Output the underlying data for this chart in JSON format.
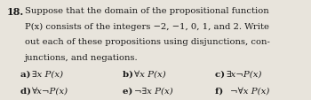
{
  "background_color": "#e8e4dc",
  "text_color": "#1a1a1a",
  "number": "18.",
  "body_lines": [
    "Suppose that the domain of the propositional function",
    "P(x) consists of the integers −2, −1, 0, 1, and 2. Write",
    "out each of these propositions using disjunctions, con-",
    "junctions, and negations."
  ],
  "items_row1": [
    {
      "label": "a) ",
      "expr": "∃x P(x)"
    },
    {
      "label": "b) ",
      "expr": "∀x P(x)"
    },
    {
      "label": "c) ",
      "expr": "∃x¬P(x)"
    }
  ],
  "items_row2": [
    {
      "label": "d) ",
      "expr": "∀x¬P(x)"
    },
    {
      "label": "e) ",
      "expr": "¬∃x P(x)"
    },
    {
      "label": "f)  ",
      "expr": "¬∀x P(x)"
    }
  ],
  "font_size_body": 7.2,
  "font_size_items": 7.4,
  "font_size_number": 8.0,
  "figwidth": 3.5,
  "figheight": 1.14,
  "dpi": 100
}
